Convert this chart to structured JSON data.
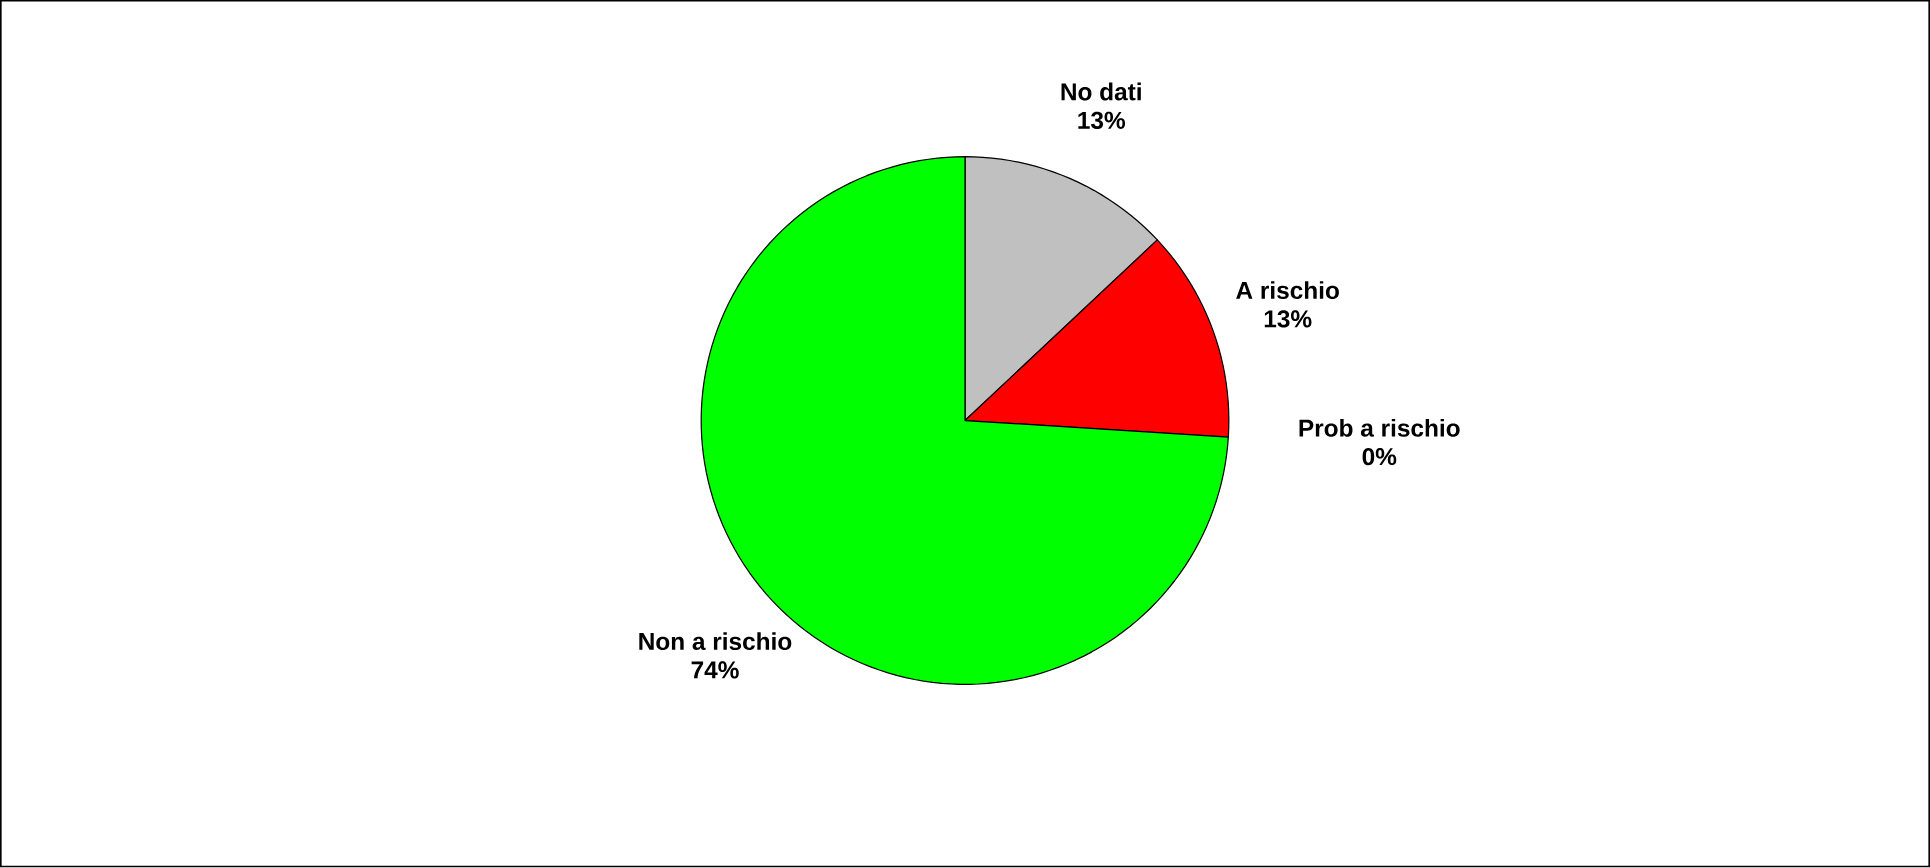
{
  "chart_data": {
    "type": "pie",
    "categories": [
      "No dati",
      "A rischio",
      "Prob a rischio",
      "Non a rischio"
    ],
    "values": [
      13,
      13,
      0,
      74
    ],
    "value_labels": [
      "13%",
      "13%",
      "0%",
      "74%"
    ],
    "colors": [
      "#c0c0c0",
      "#ff0000",
      "#ffff00",
      "#00ff00"
    ]
  }
}
